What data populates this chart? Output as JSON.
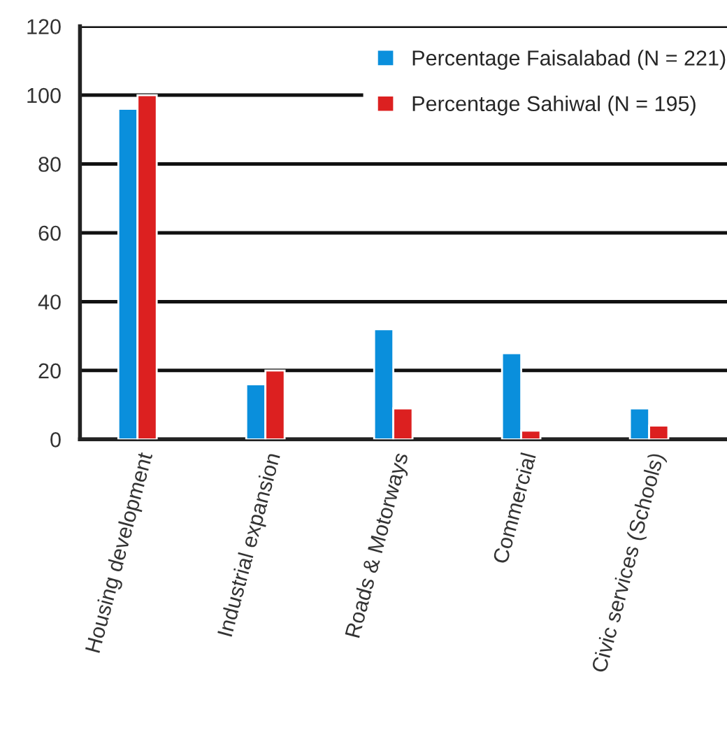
{
  "chart_data": {
    "type": "bar",
    "categories": [
      "Housing development",
      "Industrial expansion",
      "Roads & Motorways",
      "Commercial",
      "Civic services (Schools)"
    ],
    "series": [
      {
        "name": "Percentage Faisalabad (N = 221)",
        "color": "#0a8fdc",
        "values": [
          96,
          16,
          32,
          25,
          9
        ]
      },
      {
        "name": "Percentage Sahiwal (N = 195)",
        "color": "#dc2020",
        "values": [
          100,
          20,
          9,
          2.5,
          4
        ]
      }
    ],
    "ylim": [
      0,
      120
    ],
    "yticks": [
      0,
      20,
      40,
      60,
      80,
      100,
      120
    ],
    "grid": "y",
    "legend": "top right"
  }
}
